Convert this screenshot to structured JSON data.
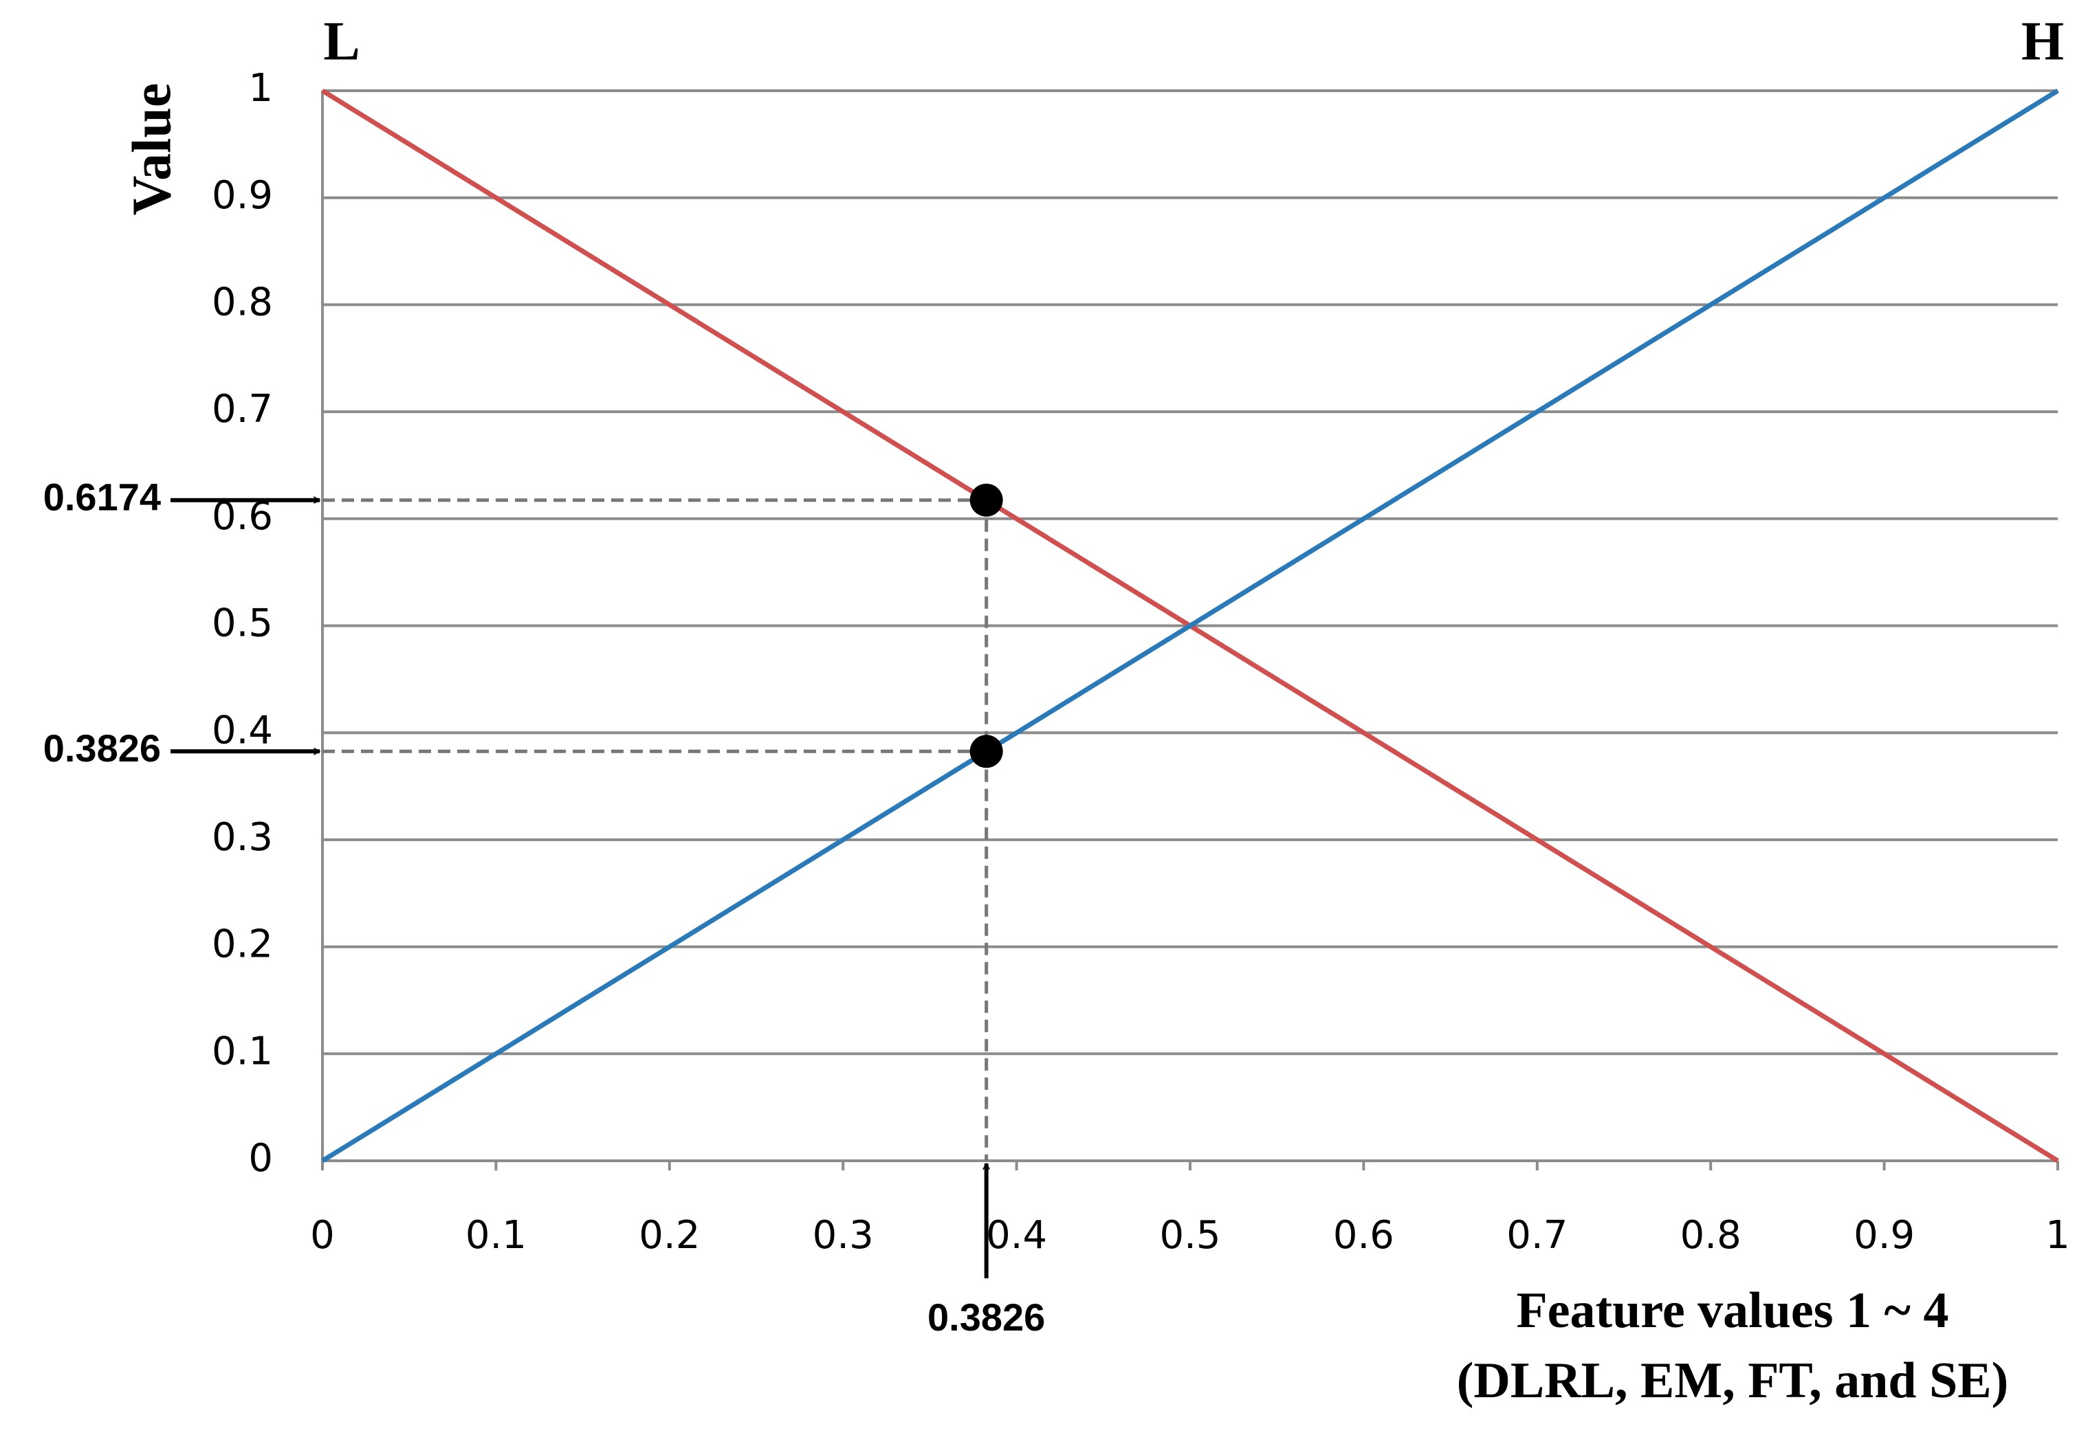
{
  "chart_data": {
    "type": "line",
    "x": [
      0,
      1
    ],
    "series": [
      {
        "name": "L",
        "color": "#d0504f",
        "values": [
          1,
          0
        ]
      },
      {
        "name": "H",
        "color": "#2a7ab9",
        "values": [
          0,
          1
        ]
      }
    ],
    "y_label": "Value",
    "x_label": [
      "Feature values 1 ~ 4",
      "(DLRL, EM, FT, and SE)"
    ],
    "xlim": [
      0,
      1
    ],
    "ylim": [
      0,
      1
    ],
    "xticks": [
      0,
      0.1,
      0.2,
      0.3,
      0.4,
      0.5,
      0.6,
      0.7,
      0.8,
      0.9,
      1
    ],
    "yticks": [
      0,
      0.1,
      0.2,
      0.3,
      0.4,
      0.5,
      0.6,
      0.7,
      0.8,
      0.9,
      1
    ],
    "grid": true,
    "x_markers": [
      0.3826
    ],
    "y_markers": [
      0.6174,
      0.3826
    ]
  }
}
